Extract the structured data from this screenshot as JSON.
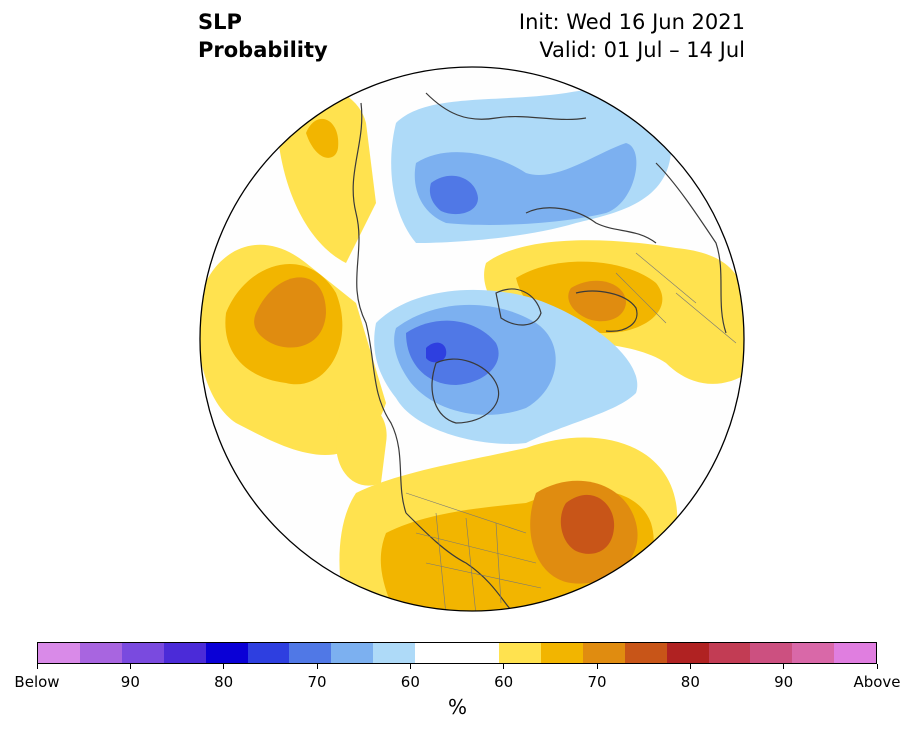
{
  "title": {
    "left_line1": "SLP",
    "left_line2": "Probability",
    "right_line1": "Init: Wed 16 Jun 2021",
    "right_line2": "Valid: 01 Jul – 14 Jul"
  },
  "map": {
    "projection": "north polar stereographic",
    "below_normal_centers": [
      "North Pole / Arctic",
      "Siberia",
      "Canadian Arctic"
    ],
    "above_normal_centers": [
      "North Pacific",
      "Eastern Europe / western Russia",
      "North Atlantic off US east coast"
    ]
  },
  "colorbar": {
    "colors": [
      "#d98ae8",
      "#a865e0",
      "#7a4adf",
      "#4b2bd8",
      "#0a00d6",
      "#2e3fe0",
      "#5078e6",
      "#7cb0f0",
      "#aedaf8",
      "#ffffff",
      "#ffffff",
      "#ffe24f",
      "#f2b500",
      "#e08c10",
      "#c85518",
      "#b02222",
      "#c23c54",
      "#cc5080",
      "#d968a8",
      "#e07ee0"
    ],
    "labels": [
      "Below",
      "90",
      "80",
      "70",
      "60",
      "60",
      "70",
      "80",
      "90",
      "Above"
    ],
    "units": "%"
  }
}
